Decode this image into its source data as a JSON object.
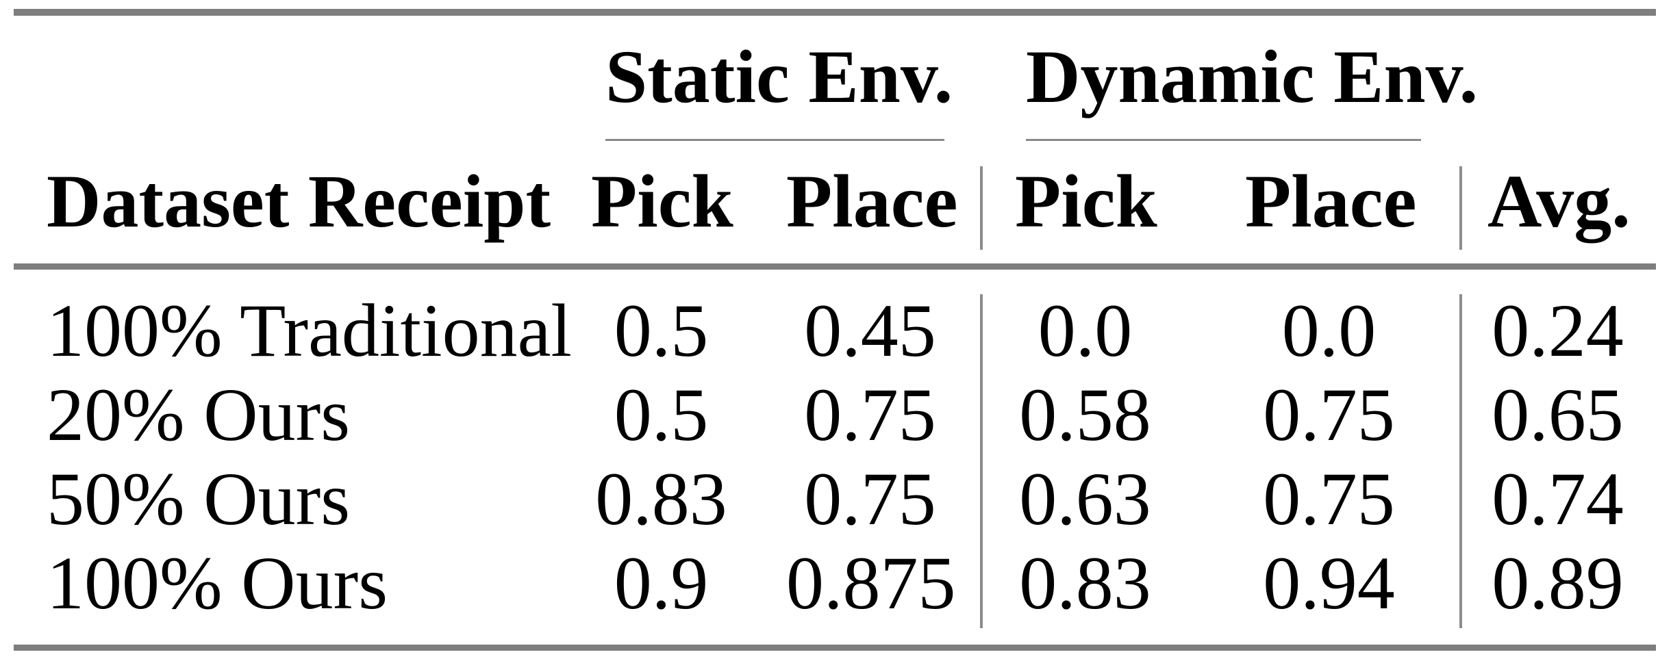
{
  "page": {
    "background_color": "#ffffff",
    "text_color": "#000000",
    "rule_color": "#7e7e7e"
  },
  "table": {
    "group_headers": {
      "static": "Static Env.",
      "dynamic": "Dynamic Env."
    },
    "column_headers": {
      "dataset": "Dataset Receipt",
      "static_pick": "Pick",
      "static_place": "Place",
      "dynamic_pick": "Pick",
      "dynamic_place": "Place",
      "avg": "Avg."
    },
    "rows": [
      {
        "dataset": "100% Traditional",
        "static_pick": "0.5",
        "static_place": "0.45",
        "dynamic_pick": "0.0",
        "dynamic_place": "0.0",
        "avg": "0.24"
      },
      {
        "dataset": "20% Ours",
        "static_pick": "0.5",
        "static_place": "0.75",
        "dynamic_pick": "0.58",
        "dynamic_place": "0.75",
        "avg": "0.65"
      },
      {
        "dataset": "50% Ours",
        "static_pick": "0.83",
        "static_place": "0.75",
        "dynamic_pick": "0.63",
        "dynamic_place": "0.75",
        "avg": "0.74"
      },
      {
        "dataset": "100% Ours",
        "static_pick": "0.9",
        "static_place": "0.875",
        "dynamic_pick": "0.83",
        "dynamic_place": "0.94",
        "avg": "0.89"
      }
    ]
  }
}
